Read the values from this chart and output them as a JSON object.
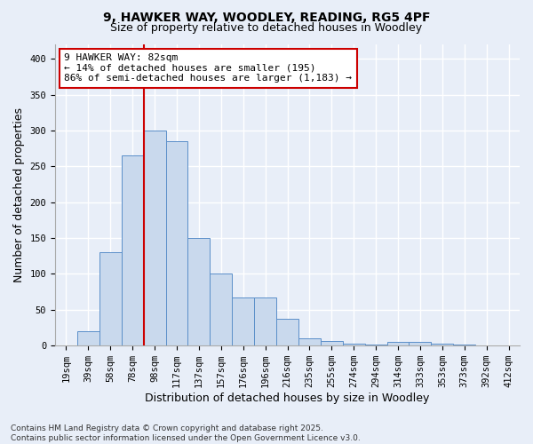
{
  "title_line1": "9, HAWKER WAY, WOODLEY, READING, RG5 4PF",
  "title_line2": "Size of property relative to detached houses in Woodley",
  "xlabel": "Distribution of detached houses by size in Woodley",
  "ylabel": "Number of detached properties",
  "footnote": "Contains HM Land Registry data © Crown copyright and database right 2025.\nContains public sector information licensed under the Open Government Licence v3.0.",
  "bin_labels": [
    "19sqm",
    "39sqm",
    "58sqm",
    "78sqm",
    "98sqm",
    "117sqm",
    "137sqm",
    "157sqm",
    "176sqm",
    "196sqm",
    "216sqm",
    "235sqm",
    "255sqm",
    "274sqm",
    "294sqm",
    "314sqm",
    "333sqm",
    "353sqm",
    "373sqm",
    "392sqm",
    "412sqm"
  ],
  "bar_heights": [
    0,
    20,
    130,
    265,
    300,
    285,
    150,
    100,
    67,
    67,
    37,
    10,
    7,
    3,
    2,
    5,
    5,
    3,
    1,
    0,
    0
  ],
  "bar_color": "#c9d9ed",
  "bar_edge_color": "#5b8fc9",
  "property_line_x": 3.5,
  "annotation_text": "9 HAWKER WAY: 82sqm\n← 14% of detached houses are smaller (195)\n86% of semi-detached houses are larger (1,183) →",
  "annotation_box_color": "#ffffff",
  "annotation_box_edge_color": "#cc0000",
  "vline_color": "#cc0000",
  "ylim": [
    0,
    420
  ],
  "yticks": [
    0,
    50,
    100,
    150,
    200,
    250,
    300,
    350,
    400
  ],
  "background_color": "#e8eef8",
  "plot_background": "#e8eef8",
  "grid_color": "#ffffff",
  "title_fontsize": 10,
  "subtitle_fontsize": 9,
  "axis_label_fontsize": 9,
  "tick_fontsize": 7.5,
  "annotation_fontsize": 8,
  "footnote_fontsize": 6.5
}
